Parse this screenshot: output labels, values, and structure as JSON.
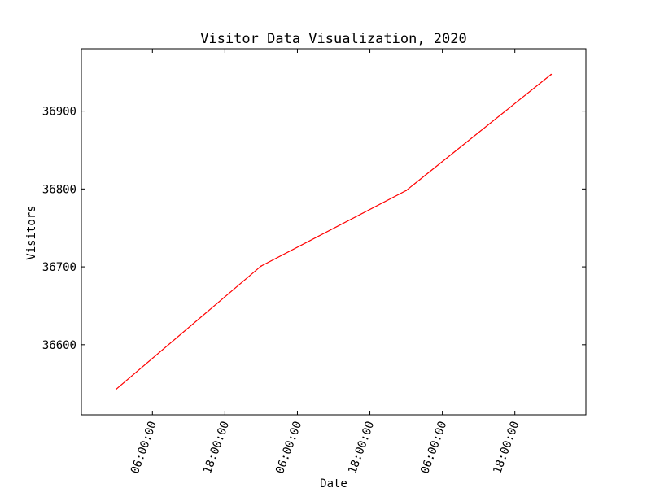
{
  "chart_data": {
    "type": "line",
    "title": "Visitor Data Visualization, 2020",
    "xlabel": "Date",
    "ylabel": "Visitors",
    "x_ticks": [
      "06:00:00",
      "18:00:00",
      "06:00:00",
      "18:00:00",
      "06:00:00",
      "18:00:00"
    ],
    "y_ticks": [
      36600,
      36700,
      36800,
      36900
    ],
    "ylim": [
      36510,
      36980
    ],
    "grid": false,
    "series": [
      {
        "color": "#ff0000",
        "points": [
          {
            "x": 0.0,
            "y": 36543
          },
          {
            "x": 1.0,
            "y": 36701
          },
          {
            "x": 2.0,
            "y": 36798
          },
          {
            "x": 3.0,
            "y": 36947
          }
        ]
      }
    ]
  }
}
